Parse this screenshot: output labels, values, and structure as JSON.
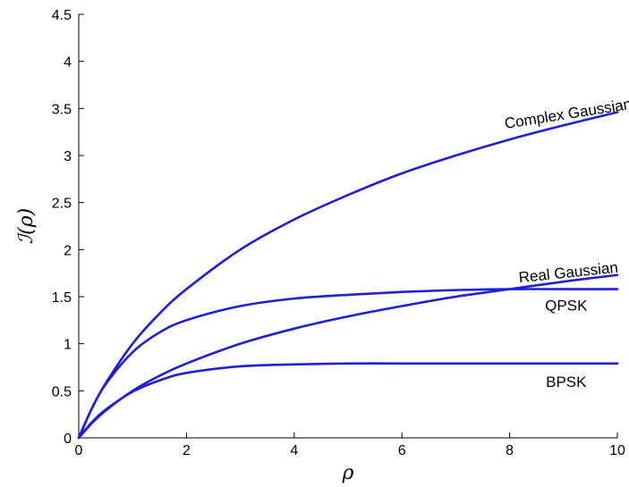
{
  "chart_data": {
    "type": "line",
    "title": "",
    "xlabel": "ρ",
    "ylabel": "ℐ(ρ)",
    "xlim": [
      0,
      10
    ],
    "ylim": [
      0,
      4.5
    ],
    "xticks": [
      0,
      2,
      4,
      6,
      8,
      10
    ],
    "yticks": [
      0,
      0.5,
      1,
      1.5,
      2,
      2.5,
      3,
      3.5,
      4,
      4.5
    ],
    "xtick_labels": [
      "0",
      "2",
      "4",
      "6",
      "8",
      "10"
    ],
    "ytick_labels": [
      "0",
      "0.5",
      "1",
      "1.5",
      "2",
      "2.5",
      "3",
      "3.5",
      "4",
      "4.5"
    ],
    "grid": false,
    "line_color": "#1f1fd6",
    "x": [
      0,
      0.25,
      0.5,
      1,
      1.5,
      2,
      3,
      4,
      5,
      6,
      7,
      8,
      9,
      10
    ],
    "series": [
      {
        "name": "Complex Gaussian",
        "values": [
          0,
          0.32,
          0.58,
          1.0,
          1.32,
          1.58,
          2.0,
          2.32,
          2.58,
          2.81,
          3.0,
          3.17,
          3.32,
          3.46
        ]
      },
      {
        "name": "Real Gaussian",
        "values": [
          0,
          0.16,
          0.29,
          0.5,
          0.66,
          0.79,
          1.0,
          1.16,
          1.29,
          1.4,
          1.5,
          1.58,
          1.66,
          1.73
        ]
      },
      {
        "name": "QPSK",
        "values": [
          0,
          0.32,
          0.57,
          0.91,
          1.12,
          1.25,
          1.4,
          1.48,
          1.52,
          1.55,
          1.57,
          1.58,
          1.58,
          1.58
        ]
      },
      {
        "name": "BPSK",
        "values": [
          0,
          0.17,
          0.3,
          0.49,
          0.61,
          0.69,
          0.76,
          0.78,
          0.79,
          0.79,
          0.79,
          0.79,
          0.79,
          0.79
        ]
      }
    ]
  }
}
